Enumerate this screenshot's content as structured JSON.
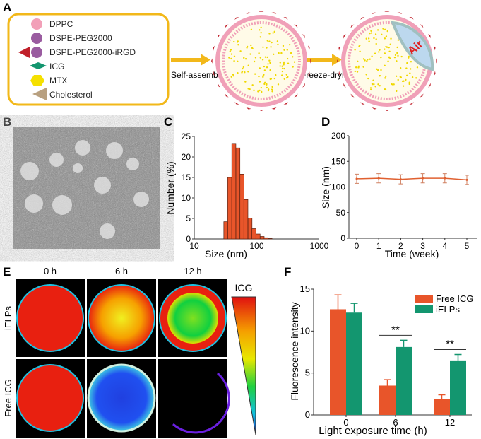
{
  "panels": {
    "A": "A",
    "B": "B",
    "C": "C",
    "D": "D",
    "E": "E",
    "F": "F"
  },
  "legend_a": [
    "DPPC",
    "DSPE-PEG2000",
    "DSPE-PEG2000-iRGD",
    "ICG",
    "MTX",
    "Cholesterol"
  ],
  "arrows": {
    "step1": "Self-assembly",
    "step2": "Freeze-drying"
  },
  "air_label": "Air",
  "panel_e": {
    "columns": [
      "0 h",
      "6 h",
      "12 h"
    ],
    "rows": [
      "iELPs",
      "Free ICG"
    ],
    "colorbar_label": "ICG"
  },
  "colors": {
    "orange": "#e8552a",
    "green": "#13966f",
    "frame": "#f2b81a",
    "line": "#e06030"
  },
  "chart_data": [
    {
      "type": "bar",
      "panel": "C",
      "xlabel": "Size (nm)",
      "ylabel": "Number (%)",
      "xscale": "log",
      "xlim": [
        10,
        1000
      ],
      "ylim": [
        0,
        25
      ],
      "xticks": [
        "10",
        "100",
        "1000"
      ],
      "yticks": [
        "0",
        "5",
        "10",
        "15",
        "20",
        "25"
      ],
      "x": [
        32,
        37,
        43,
        50,
        58,
        67,
        78,
        90,
        105,
        122,
        141,
        163
      ],
      "values": [
        4.2,
        15,
        23.3,
        22.2,
        15.8,
        9.6,
        5.1,
        2.5,
        1.2,
        0.6,
        0.3,
        0.1
      ]
    },
    {
      "type": "line",
      "panel": "D",
      "xlabel": "Time (week)",
      "ylabel": "Size (nm)",
      "xlim": [
        0,
        5
      ],
      "ylim": [
        0,
        200
      ],
      "xticks": [
        "0",
        "1",
        "2",
        "3",
        "4",
        "5"
      ],
      "yticks": [
        "0",
        "50",
        "100",
        "150",
        "200"
      ],
      "x": [
        0,
        1,
        2,
        3,
        4,
        5
      ],
      "values": [
        116,
        117,
        115,
        117,
        117,
        114
      ],
      "errors": [
        9,
        9,
        9,
        9,
        9,
        9
      ]
    },
    {
      "type": "bar",
      "panel": "F",
      "xlabel": "Light exposure time (h)",
      "ylabel": "Fluorescence intensity",
      "ylim": [
        0,
        15
      ],
      "categories": [
        "0",
        "6",
        "12"
      ],
      "yticks": [
        "0",
        "5",
        "10",
        "15"
      ],
      "legend": "top-right",
      "series": [
        {
          "name": "Free ICG",
          "values": [
            12.6,
            3.5,
            1.9
          ],
          "errors": [
            1.7,
            0.7,
            0.5
          ]
        },
        {
          "name": "iELPs",
          "values": [
            12.2,
            8.1,
            6.5
          ],
          "errors": [
            1.1,
            0.8,
            0.7
          ]
        }
      ],
      "annotations": [
        "**",
        "**"
      ]
    }
  ]
}
